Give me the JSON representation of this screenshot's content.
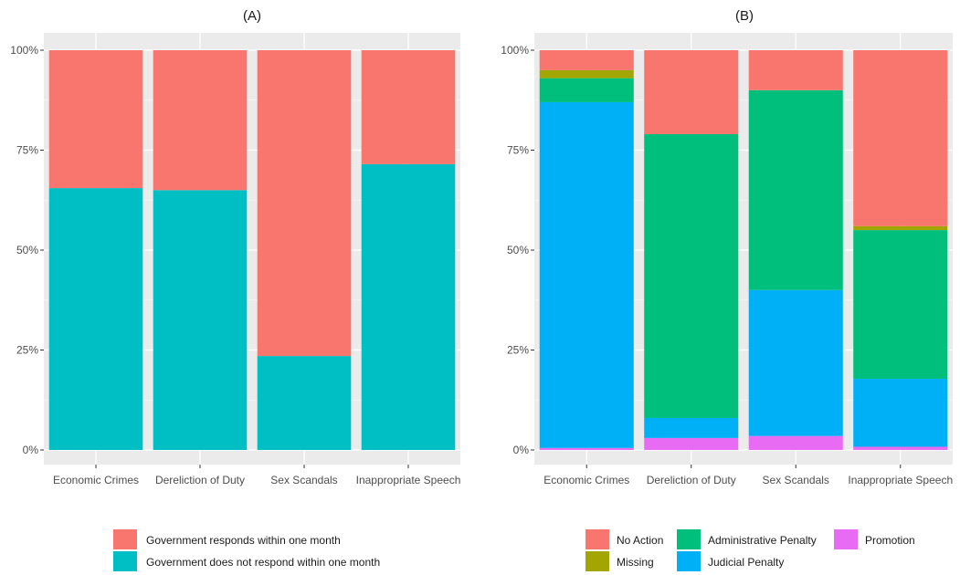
{
  "chart_data": [
    {
      "type": "bar",
      "stacked": true,
      "title": "(A)",
      "xlabel": "",
      "ylabel": "",
      "ylim": [
        0,
        1
      ],
      "y_ticks": [
        "0%",
        "25%",
        "50%",
        "75%",
        "100%"
      ],
      "grid": true,
      "legend_position": "bottom",
      "categories": [
        "Economic Crimes",
        "Dereliction of Duty",
        "Sex Scandals",
        "Inappropriate Speech"
      ],
      "series": [
        {
          "name": "Government does not respond within one month",
          "color": "#00bfc4",
          "values": [
            0.655,
            0.65,
            0.235,
            0.715
          ]
        },
        {
          "name": "Government responds within one month",
          "color": "#f8766d",
          "values": [
            0.345,
            0.35,
            0.765,
            0.285
          ]
        }
      ],
      "legend_order": [
        1,
        0
      ]
    },
    {
      "type": "bar",
      "stacked": true,
      "title": "(B)",
      "xlabel": "",
      "ylabel": "",
      "ylim": [
        0,
        1
      ],
      "y_ticks": [
        "0%",
        "25%",
        "50%",
        "75%",
        "100%"
      ],
      "grid": true,
      "legend_position": "bottom",
      "categories": [
        "Economic Crimes",
        "Dereliction of Duty",
        "Sex Scandals",
        "Inappropriate Speech"
      ],
      "series": [
        {
          "name": "Promotion",
          "color": "#e76bf3",
          "values": [
            0.005,
            0.03,
            0.035,
            0.008
          ]
        },
        {
          "name": "Judicial Penalty",
          "color": "#00b0f6",
          "values": [
            0.865,
            0.05,
            0.365,
            0.17
          ]
        },
        {
          "name": "Administrative Penalty",
          "color": "#00bf7d",
          "values": [
            0.06,
            0.71,
            0.5,
            0.372
          ]
        },
        {
          "name": "Missing",
          "color": "#a3a500",
          "values": [
            0.02,
            0.0,
            0.0,
            0.01
          ]
        },
        {
          "name": "No Action",
          "color": "#f8766d",
          "values": [
            0.05,
            0.21,
            0.1,
            0.44
          ]
        }
      ],
      "legend_order": [
        4,
        2,
        0,
        3,
        1
      ]
    }
  ]
}
